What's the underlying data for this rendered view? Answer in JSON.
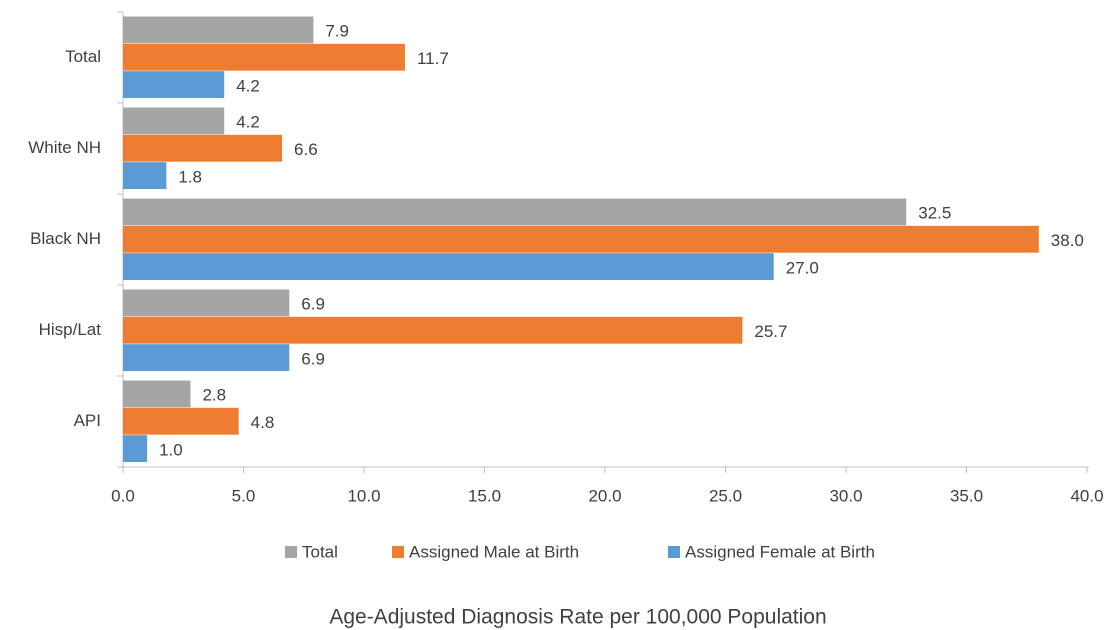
{
  "chart_data": {
    "type": "barh",
    "categories": [
      "Total",
      "White NH",
      "Black NH",
      "Hisp/Lat",
      "API"
    ],
    "series": [
      {
        "name": "Total",
        "color": "#a5a5a5",
        "values": [
          7.9,
          4.2,
          32.5,
          6.9,
          2.8
        ],
        "value_labels": [
          "7.9",
          "4.2",
          "32.5",
          "6.9",
          "2.8"
        ]
      },
      {
        "name": "Assigned Male at Birth",
        "color": "#ed7d31",
        "values": [
          11.7,
          6.6,
          38.0,
          25.7,
          4.8
        ],
        "value_labels": [
          "11.7",
          "6.6",
          "38.0",
          "25.7",
          "4.8"
        ]
      },
      {
        "name": "Assigned Female at Birth",
        "color": "#5b9bd5",
        "values": [
          4.2,
          1.8,
          27.0,
          6.9,
          1.0
        ],
        "value_labels": [
          "4.2",
          "1.8",
          "27.0",
          "6.9",
          "1.0"
        ]
      }
    ],
    "xlim": [
      0,
      40
    ],
    "xticks": [
      {
        "value": 0,
        "label": "0.0"
      },
      {
        "value": 5,
        "label": "5.0"
      },
      {
        "value": 10,
        "label": "10.0"
      },
      {
        "value": 15,
        "label": "15.0"
      },
      {
        "value": 20,
        "label": "20.0"
      },
      {
        "value": 25,
        "label": "25.0"
      },
      {
        "value": 30,
        "label": "30.0"
      },
      {
        "value": 35,
        "label": "35.0"
      },
      {
        "value": 40,
        "label": "40.0"
      }
    ],
    "xlabel": "Age-Adjusted Diagnosis Rate per 100,000 Population",
    "legend": "bottom",
    "grid": false
  }
}
